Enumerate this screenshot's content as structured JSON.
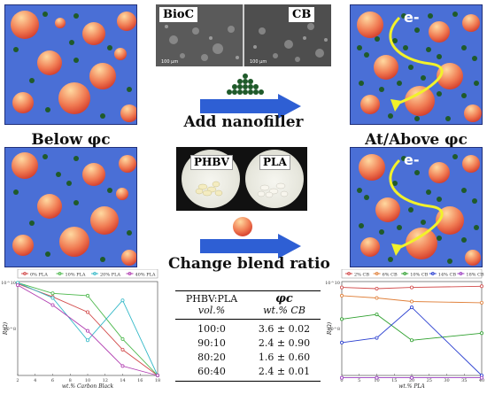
{
  "top_center": {
    "sem_label_left": "BioC",
    "sem_label_right": "CB",
    "scale_left": "100 μm",
    "scale_right": "100 μm",
    "action_caption": "Add nanofiller"
  },
  "middle_center": {
    "photo_label_left": "PHBV",
    "photo_label_right": "PLA",
    "action_caption": "Change blend ratio"
  },
  "captions": {
    "below": "Below φc",
    "above": "At/Above φc"
  },
  "electron_label": "e-",
  "colors": {
    "panel_bg": "#4a6fd6",
    "arrow_blue": "#2e5fd4",
    "filler_dot": "#1f5a2a",
    "electron_path": "#f2f22a"
  },
  "table": {
    "col1_head": "PHBV:PLA",
    "col1_sub": "vol.%",
    "col2_head": "φc",
    "col2_sub": "wt.% CB",
    "rows": [
      {
        "ratio": "100:0",
        "phi": "3.6 ± 0.02"
      },
      {
        "ratio": "90:10",
        "phi": "2.4 ± 0.90"
      },
      {
        "ratio": "80:20",
        "phi": "1.6 ± 0.60"
      },
      {
        "ratio": "60:40",
        "phi": "2.4 ± 0.01"
      }
    ]
  },
  "chart_data": [
    {
      "type": "line",
      "title": "",
      "xlabel": "wt.% Carbon Black",
      "ylabel": "R(Ω)",
      "x": [
        2,
        4,
        6,
        8,
        10,
        12,
        14,
        16,
        18
      ],
      "xticks": [
        "2",
        "4",
        "6",
        "8",
        "10",
        "12",
        "14",
        "16",
        "18"
      ],
      "log_y": true,
      "ylim_exponent": [
        6,
        10
      ],
      "ytick_label_top": "10^10",
      "ytick_label_mid": "10^8",
      "legend_placement": "top",
      "series": [
        {
          "name": "0% PLA",
          "color": "#d24a4a",
          "points": [
            [
              2,
              9.9
            ],
            [
              6,
              9.35
            ],
            [
              10,
              8.7
            ],
            [
              14,
              7.1
            ],
            [
              18,
              6.0
            ]
          ]
        },
        {
          "name": "10% PLA",
          "color": "#4cb84c",
          "points": [
            [
              2,
              9.95
            ],
            [
              6,
              9.5
            ],
            [
              10,
              9.4
            ],
            [
              14,
              7.55
            ],
            [
              18,
              6.0
            ]
          ]
        },
        {
          "name": "20% PLA",
          "color": "#35b9c8",
          "points": [
            [
              2,
              9.95
            ],
            [
              6,
              9.3
            ],
            [
              10,
              7.5
            ],
            [
              14,
              9.2
            ],
            [
              18,
              6.0
            ]
          ]
        },
        {
          "name": "40% PLA",
          "color": "#b03cb0",
          "points": [
            [
              2,
              9.85
            ],
            [
              6,
              9.0
            ],
            [
              10,
              7.9
            ],
            [
              14,
              6.4
            ],
            [
              18,
              6.0
            ]
          ]
        }
      ]
    },
    {
      "type": "line",
      "title": "",
      "xlabel": "wt.% PLA",
      "ylabel": "R(Ω)",
      "x": [
        0,
        10,
        20,
        40
      ],
      "xticks": [
        "0",
        "5",
        "10",
        "15",
        "20",
        "25",
        "30",
        "35",
        "40"
      ],
      "log_y": true,
      "ylim_exponent": [
        6,
        10
      ],
      "ytick_label_top": "10^10",
      "ytick_label_mid": "10^8",
      "legend_placement": "top",
      "series": [
        {
          "name": "2% CB",
          "color": "#d24a4a",
          "points": [
            [
              0,
              9.75
            ],
            [
              10,
              9.7
            ],
            [
              20,
              9.75
            ],
            [
              40,
              9.8
            ]
          ]
        },
        {
          "name": "6% CB",
          "color": "#e0803a",
          "points": [
            [
              0,
              9.4
            ],
            [
              10,
              9.3
            ],
            [
              20,
              9.15
            ],
            [
              40,
              9.1
            ]
          ]
        },
        {
          "name": "10% CB",
          "color": "#2ea02e",
          "points": [
            [
              0,
              8.4
            ],
            [
              10,
              8.6
            ],
            [
              20,
              7.5
            ],
            [
              40,
              7.8
            ]
          ]
        },
        {
          "name": "14% CB",
          "color": "#2a3fd0",
          "points": [
            [
              0,
              7.4
            ],
            [
              10,
              7.6
            ],
            [
              20,
              8.9
            ],
            [
              40,
              6.0
            ]
          ]
        },
        {
          "name": "18% CB",
          "color": "#9a3cc0",
          "points": [
            [
              0,
              5.9
            ],
            [
              10,
              5.9
            ],
            [
              20,
              5.9
            ],
            [
              40,
              5.9
            ]
          ]
        }
      ]
    }
  ]
}
